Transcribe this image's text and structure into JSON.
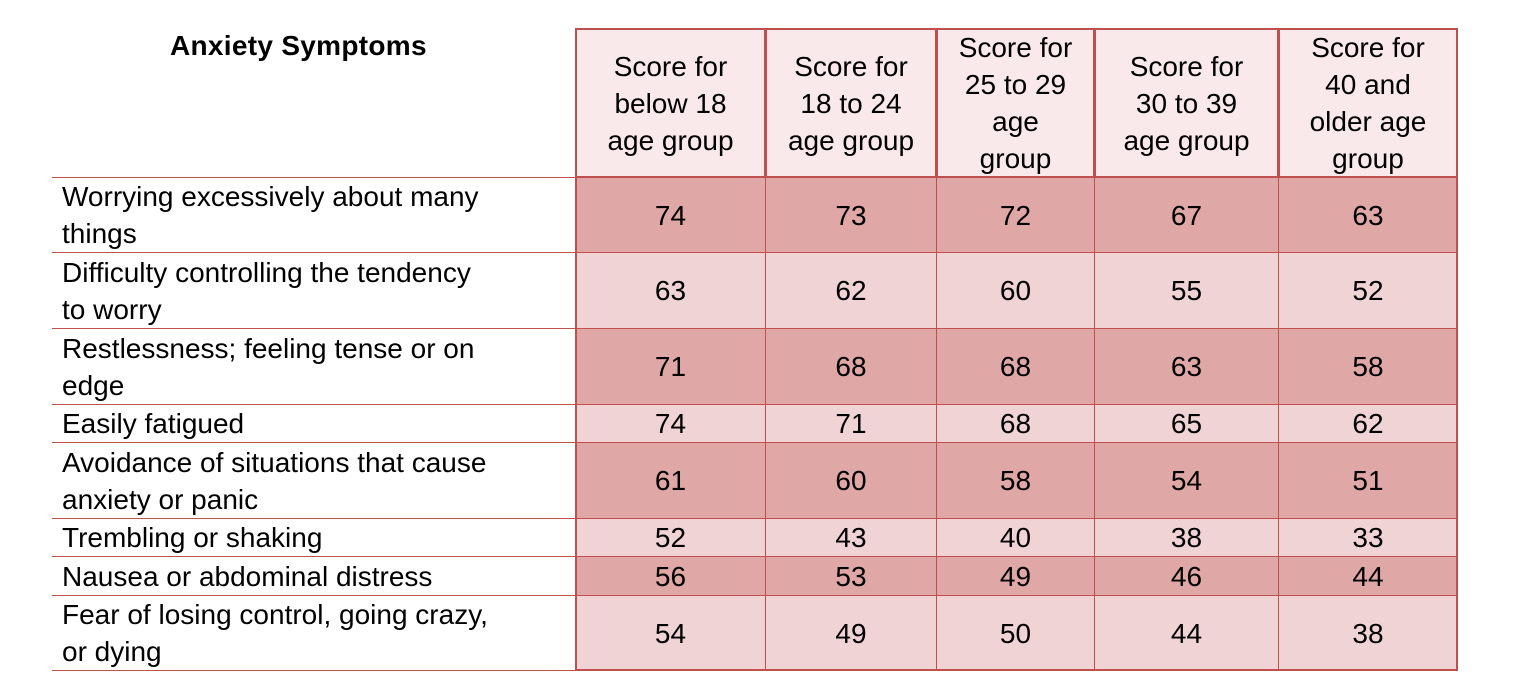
{
  "chart_data": {
    "type": "table",
    "corner_header": "Anxiety Symptoms",
    "columns": [
      "Score for below 18 age group",
      "Score for 18 to 24 age group",
      "Score for 25 to 29 age group",
      "Score for 30 to 39 age group",
      "Score for 40 and older age group"
    ],
    "column_lines": [
      [
        "Score for",
        "below 18",
        "age group"
      ],
      [
        "Score for",
        "18 to 24",
        "age group"
      ],
      [
        "Score for",
        "25 to 29",
        "age",
        "group"
      ],
      [
        "Score for",
        "30 to 39",
        "age group"
      ],
      [
        "Score for",
        "40 and",
        "older age",
        "group"
      ]
    ],
    "rows": [
      {
        "label": "Worrying excessively about many things",
        "label_lines": [
          "Worrying excessively about many",
          "things"
        ],
        "values": [
          74,
          73,
          72,
          67,
          63
        ]
      },
      {
        "label": "Difficulty controlling the tendency to worry",
        "label_lines": [
          "Difficulty controlling the tendency",
          "to worry"
        ],
        "values": [
          63,
          62,
          60,
          55,
          52
        ]
      },
      {
        "label": "Restlessness; feeling tense or on edge",
        "label_lines": [
          "Restlessness; feeling tense or on",
          "edge"
        ],
        "values": [
          71,
          68,
          68,
          63,
          58
        ]
      },
      {
        "label": "Easily fatigued",
        "label_lines": [
          "Easily fatigued"
        ],
        "values": [
          74,
          71,
          68,
          65,
          62
        ]
      },
      {
        "label": "Avoidance of situations that cause anxiety or panic",
        "label_lines": [
          "Avoidance of situations that cause",
          "anxiety or panic"
        ],
        "values": [
          61,
          60,
          58,
          54,
          51
        ]
      },
      {
        "label": "Trembling or shaking",
        "label_lines": [
          "Trembling or shaking"
        ],
        "values": [
          52,
          43,
          40,
          38,
          33
        ]
      },
      {
        "label": "Nausea or abdominal distress",
        "label_lines": [
          "Nausea or abdominal distress"
        ],
        "values": [
          56,
          53,
          49,
          46,
          44
        ]
      },
      {
        "label": "Fear of losing control, going crazy, or dying",
        "label_lines": [
          "Fear of losing control, going crazy,",
          "or dying"
        ],
        "values": [
          54,
          49,
          50,
          44,
          38
        ]
      }
    ],
    "colors": {
      "border": "#c0504d",
      "header_fill": "#f9e9ea",
      "row_fill_dark": "#dfa7a6",
      "row_fill_light": "#f0d3d4",
      "text": "#000000"
    }
  }
}
